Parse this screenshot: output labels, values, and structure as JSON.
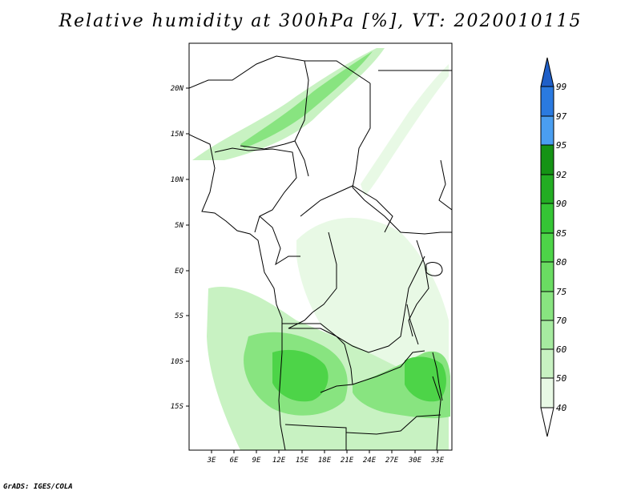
{
  "title": "Relative humidity at 300hPa [%], VT: 2020010115",
  "credit": "GrADS: IGES/COLA",
  "map": {
    "lat_labels": [
      "20N",
      "15N",
      "10N",
      "5N",
      "EQ",
      "5S",
      "10S",
      "15S"
    ],
    "lon_labels": [
      "3E",
      "6E",
      "9E",
      "12E",
      "15E",
      "18E",
      "21E",
      "24E",
      "27E",
      "30E",
      "33E"
    ]
  },
  "colorbar": {
    "levels": [
      "40",
      "50",
      "60",
      "70",
      "75",
      "80",
      "85",
      "90",
      "92",
      "95",
      "97",
      "99"
    ],
    "colors": [
      "#ffffff",
      "#e8f9e5",
      "#c8f2c2",
      "#a6eba0",
      "#88e480",
      "#6adc62",
      "#4dd448",
      "#35c535",
      "#23ad23",
      "#159315",
      "#4a9ef0",
      "#2a7ae0",
      "#1f5fc8"
    ]
  }
}
